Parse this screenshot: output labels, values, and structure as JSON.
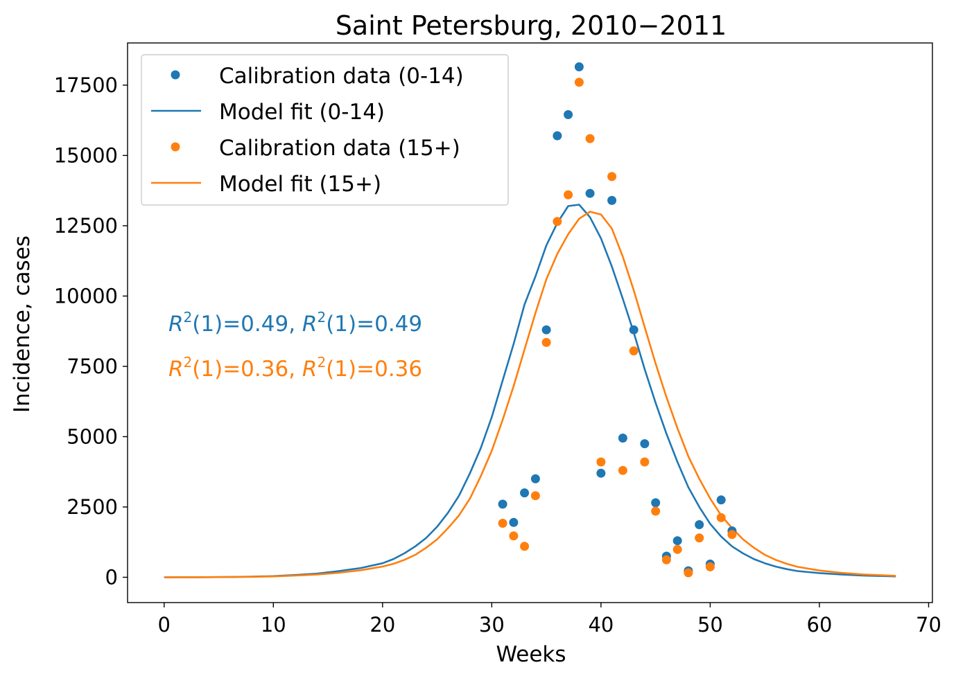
{
  "chart_data": {
    "type": "scatter",
    "title": "Saint Petersburg, 2010−2011",
    "xlabel": "Weeks",
    "ylabel": "Incidence, cases",
    "xlim": [
      -3.35,
      70.35
    ],
    "ylim": [
      -900,
      19000
    ],
    "xticks": [
      0,
      10,
      20,
      30,
      40,
      50,
      60,
      70
    ],
    "yticks": [
      0,
      2500,
      5000,
      7500,
      10000,
      12500,
      15000,
      17500
    ],
    "grid": false,
    "legend_position": "top-left",
    "legend": [
      {
        "label": "Calibration data (0-14)",
        "kind": "marker",
        "color": "#1f77b4"
      },
      {
        "label": "Model fit (0-14)",
        "kind": "line",
        "color": "#1f77b4"
      },
      {
        "label": "Calibration data (15+)",
        "kind": "marker",
        "color": "#ff7f0e"
      },
      {
        "label": "Model fit (15+)",
        "kind": "line",
        "color": "#ff7f0e"
      }
    ],
    "annotations": [
      {
        "color": "#1f77b4",
        "v1": "0.49",
        "v2": "0.49"
      },
      {
        "color": "#ff7f0e",
        "v1": "0.36",
        "v2": "0.36"
      }
    ],
    "series": [
      {
        "name": "Calibration data (0-14)",
        "kind": "scatter",
        "color": "#1f77b4",
        "x": [
          31,
          32,
          33,
          34,
          35,
          36,
          37,
          38,
          39,
          40,
          41,
          42,
          43,
          44,
          45,
          46,
          47,
          48,
          49,
          50,
          51,
          52
        ],
        "y": [
          2600,
          1950,
          3000,
          3500,
          8800,
          15700,
          16450,
          18150,
          13650,
          3700,
          13400,
          4950,
          8800,
          4750,
          2650,
          750,
          1300,
          230,
          1870,
          470,
          2750,
          1650
        ]
      },
      {
        "name": "Calibration data (15+)",
        "kind": "scatter",
        "color": "#ff7f0e",
        "x": [
          31,
          32,
          33,
          34,
          35,
          36,
          37,
          38,
          39,
          40,
          41,
          42,
          43,
          44,
          45,
          46,
          47,
          48,
          49,
          50,
          51,
          52
        ],
        "y": [
          1920,
          1470,
          1100,
          2900,
          8350,
          12650,
          13600,
          17600,
          15600,
          4100,
          14250,
          3800,
          8050,
          4100,
          2350,
          620,
          990,
          160,
          1400,
          370,
          2120,
          1520
        ]
      },
      {
        "name": "Model fit (0-14)",
        "kind": "line",
        "color": "#1f77b4",
        "x": [
          0,
          2,
          4,
          6,
          8,
          10,
          12,
          14,
          16,
          18,
          20,
          21,
          22,
          23,
          24,
          25,
          26,
          27,
          28,
          29,
          30,
          31,
          32,
          33,
          34,
          35,
          36,
          37,
          38,
          39,
          40,
          41,
          42,
          43,
          44,
          45,
          46,
          47,
          48,
          49,
          50,
          51,
          52,
          53,
          54,
          55,
          56,
          57,
          58,
          60,
          62,
          64,
          67
        ],
        "y": [
          0,
          2,
          5,
          10,
          20,
          40,
          80,
          130,
          220,
          330,
          500,
          650,
          850,
          1100,
          1400,
          1800,
          2300,
          2900,
          3700,
          4600,
          5700,
          7000,
          8300,
          9700,
          10700,
          11800,
          12600,
          13200,
          13250,
          12800,
          12050,
          11050,
          9900,
          8700,
          7400,
          6200,
          5100,
          4100,
          3200,
          2500,
          1900,
          1450,
          1100,
          850,
          650,
          500,
          380,
          290,
          220,
          150,
          100,
          60,
          30
        ]
      },
      {
        "name": "Model fit (15+)",
        "kind": "line",
        "color": "#ff7f0e",
        "x": [
          0,
          2,
          4,
          6,
          8,
          10,
          12,
          14,
          16,
          18,
          20,
          21,
          22,
          23,
          24,
          25,
          26,
          27,
          28,
          29,
          30,
          31,
          32,
          33,
          34,
          35,
          36,
          37,
          38,
          39,
          40,
          41,
          42,
          43,
          44,
          45,
          46,
          47,
          48,
          49,
          50,
          51,
          52,
          53,
          54,
          55,
          56,
          57,
          58,
          60,
          62,
          64,
          67
        ],
        "y": [
          0,
          2,
          4,
          8,
          15,
          30,
          60,
          100,
          160,
          250,
          380,
          480,
          620,
          800,
          1050,
          1350,
          1750,
          2200,
          2800,
          3600,
          4500,
          5600,
          6800,
          8100,
          9400,
          10600,
          11500,
          12200,
          12750,
          13000,
          12900,
          12400,
          11400,
          10200,
          8900,
          7600,
          6400,
          5300,
          4300,
          3500,
          2800,
          2200,
          1750,
          1350,
          1050,
          800,
          620,
          480,
          370,
          240,
          160,
          100,
          50
        ]
      }
    ]
  }
}
